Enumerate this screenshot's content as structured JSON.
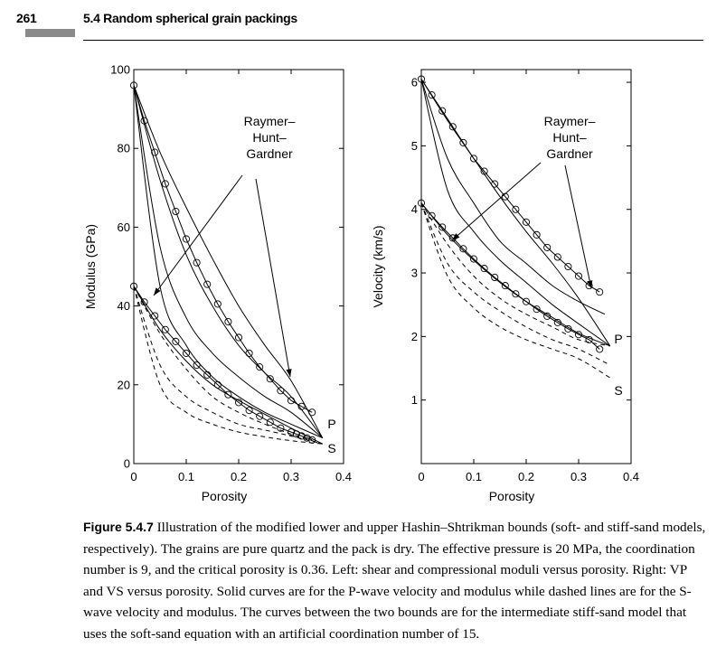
{
  "header": {
    "page_number": "261",
    "section_title": "5.4 Random spherical grain packings"
  },
  "caption": {
    "label": "Figure 5.4.7",
    "text": "Illustration of the modified lower and upper Hashin–Shtrikman bounds (soft- and stiff-sand models, respectively). The grains are pure quartz and the pack is dry. The effective pressure is 20 MPa, the coordination number is 9, and the critical porosity is 0.36. Left: shear and compressional moduli versus porosity. Right: VP and VS versus porosity. Solid curves are for the P-wave velocity and modulus while dashed lines are for the S-wave velocity and modulus. The curves between the two bounds are for the intermediate stiff-sand model that uses the soft-sand equation with an artificial coordination number of 15."
  },
  "chart_data": [
    {
      "type": "line",
      "xlabel": "Porosity",
      "ylabel": "Modulus (GPa)",
      "xlim": [
        0,
        0.4
      ],
      "ylim": [
        0,
        100
      ],
      "xticks": [
        "0",
        "0.1",
        "0.2",
        "0.3",
        "0.4"
      ],
      "yticks": [
        "0",
        "20",
        "40",
        "60",
        "80",
        "100"
      ],
      "annotations": [
        "Raymer–",
        "Hunt–",
        "Gardner",
        "P",
        "S"
      ],
      "series": [
        {
          "style": "solid",
          "x": [
            0,
            0.05,
            0.1,
            0.15,
            0.2,
            0.25,
            0.3,
            0.36
          ],
          "y": [
            96,
            45,
            30,
            22,
            17,
            13,
            10,
            6.5
          ]
        },
        {
          "style": "solid",
          "x": [
            0,
            0.05,
            0.1,
            0.15,
            0.2,
            0.25,
            0.3,
            0.36
          ],
          "y": [
            96,
            55,
            37,
            28,
            22,
            17,
            13,
            6.5
          ]
        },
        {
          "style": "solid",
          "x": [
            0,
            0.05,
            0.1,
            0.15,
            0.2,
            0.25,
            0.3,
            0.36
          ],
          "y": [
            96,
            72,
            53,
            40,
            30,
            23,
            17,
            6.5
          ]
        },
        {
          "style": "solid",
          "x": [
            0,
            0.05,
            0.1,
            0.15,
            0.2,
            0.25,
            0.3,
            0.36
          ],
          "y": [
            96,
            79,
            65,
            52,
            40,
            30,
            21,
            6.5
          ]
        },
        {
          "style": "solid",
          "x": [
            0,
            0.05,
            0.1,
            0.15,
            0.2,
            0.25,
            0.3,
            0.36
          ],
          "y": [
            45,
            34,
            26,
            20,
            16,
            12.5,
            9,
            5
          ]
        },
        {
          "style": "dashed",
          "x": [
            0,
            0.05,
            0.1,
            0.15,
            0.2,
            0.25,
            0.3,
            0.36
          ],
          "y": [
            45,
            20,
            13,
            10,
            8,
            6.8,
            5.8,
            5
          ]
        },
        {
          "style": "dashed",
          "x": [
            0,
            0.05,
            0.1,
            0.15,
            0.2,
            0.25,
            0.3,
            0.36
          ],
          "y": [
            45,
            25,
            17,
            13,
            10,
            8.5,
            7,
            5
          ]
        },
        {
          "style": "dashed",
          "x": [
            0,
            0.05,
            0.1,
            0.15,
            0.2,
            0.25,
            0.3,
            0.36
          ],
          "y": [
            45,
            33,
            24,
            17,
            13,
            10,
            7.5,
            5
          ]
        },
        {
          "style": "markers",
          "x": [
            0,
            0.02,
            0.04,
            0.06,
            0.08,
            0.1,
            0.12,
            0.14,
            0.16,
            0.18,
            0.2,
            0.22,
            0.24,
            0.26,
            0.28,
            0.3,
            0.32,
            0.34
          ],
          "y": [
            96,
            87,
            79,
            71,
            64,
            57,
            51,
            45.5,
            40.5,
            36,
            32,
            28,
            24.5,
            21.5,
            18.5,
            16,
            14.5,
            13
          ]
        },
        {
          "style": "markers",
          "x": [
            0,
            0.02,
            0.04,
            0.06,
            0.08,
            0.1,
            0.12,
            0.14,
            0.16,
            0.18,
            0.2,
            0.22,
            0.24,
            0.26,
            0.28,
            0.3,
            0.31,
            0.32,
            0.33,
            0.34
          ],
          "y": [
            45,
            41,
            37.5,
            34,
            31,
            28,
            25,
            22.5,
            20,
            17.5,
            15.5,
            13.5,
            12,
            10.5,
            9,
            8,
            7.5,
            7,
            6.5,
            6
          ]
        }
      ]
    },
    {
      "type": "line",
      "xlabel": "Porosity",
      "ylabel": "Velocity (km/s)",
      "xlim": [
        0,
        0.4
      ],
      "ylim": [
        0,
        6.2
      ],
      "xticks": [
        "0",
        "0.1",
        "0.2",
        "0.3",
        "0.4"
      ],
      "yticks": [
        "1",
        "2",
        "3",
        "4",
        "5",
        "6"
      ],
      "annotations": [
        "Raymer–",
        "Hunt–",
        "Gardner",
        "P",
        "S"
      ],
      "series": [
        {
          "style": "solid",
          "x": [
            0,
            0.05,
            0.1,
            0.15,
            0.2,
            0.25,
            0.3,
            0.36
          ],
          "y": [
            6.05,
            4.3,
            3.65,
            3.2,
            2.85,
            2.5,
            2.2,
            1.85
          ]
        },
        {
          "style": "solid",
          "x": [
            0,
            0.05,
            0.1,
            0.15,
            0.2,
            0.25,
            0.3,
            0.35
          ],
          "y": [
            6.05,
            4.8,
            4.1,
            3.5,
            3.15,
            2.8,
            2.55,
            2.35
          ]
        },
        {
          "style": "solid",
          "x": [
            0,
            0.05,
            0.1,
            0.15,
            0.2,
            0.25,
            0.3,
            0.36
          ],
          "y": [
            6.05,
            5.4,
            4.8,
            4.2,
            3.65,
            3.15,
            2.6,
            1.85
          ]
        },
        {
          "style": "solid",
          "x": [
            0,
            0.05,
            0.1,
            0.15,
            0.2,
            0.25,
            0.3,
            0.36
          ],
          "y": [
            4.1,
            3.6,
            3.2,
            2.85,
            2.55,
            2.3,
            2.05,
            1.85
          ]
        },
        {
          "style": "dashed",
          "x": [
            0,
            0.05,
            0.1,
            0.15,
            0.2,
            0.25,
            0.3,
            0.36
          ],
          "y": [
            4.1,
            2.95,
            2.45,
            2.15,
            1.95,
            1.8,
            1.65,
            1.35
          ]
        },
        {
          "style": "dashed",
          "x": [
            0,
            0.05,
            0.1,
            0.15,
            0.2,
            0.25,
            0.3,
            0.36
          ],
          "y": [
            4.1,
            3.15,
            2.7,
            2.4,
            2.15,
            1.95,
            1.8,
            1.55
          ]
        },
        {
          "style": "dashed",
          "x": [
            0,
            0.05,
            0.1,
            0.15,
            0.2,
            0.25,
            0.3,
            0.36
          ],
          "y": [
            4.1,
            3.45,
            2.95,
            2.6,
            2.35,
            2.15,
            1.95,
            1.85
          ]
        },
        {
          "style": "markers",
          "x": [
            0,
            0.02,
            0.04,
            0.06,
            0.08,
            0.1,
            0.12,
            0.14,
            0.16,
            0.18,
            0.2,
            0.22,
            0.24,
            0.26,
            0.28,
            0.3,
            0.32,
            0.34
          ],
          "y": [
            6.05,
            5.8,
            5.55,
            5.3,
            5.05,
            4.8,
            4.6,
            4.4,
            4.2,
            4.0,
            3.8,
            3.6,
            3.4,
            3.25,
            3.1,
            2.95,
            2.8,
            2.7
          ]
        },
        {
          "style": "markers",
          "x": [
            0,
            0.02,
            0.04,
            0.06,
            0.08,
            0.1,
            0.12,
            0.14,
            0.16,
            0.18,
            0.2,
            0.22,
            0.24,
            0.26,
            0.28,
            0.3,
            0.32,
            0.34
          ],
          "y": [
            4.1,
            3.9,
            3.72,
            3.55,
            3.38,
            3.22,
            3.07,
            2.93,
            2.8,
            2.67,
            2.55,
            2.43,
            2.32,
            2.22,
            2.12,
            2.03,
            1.95,
            1.8
          ]
        }
      ]
    }
  ]
}
